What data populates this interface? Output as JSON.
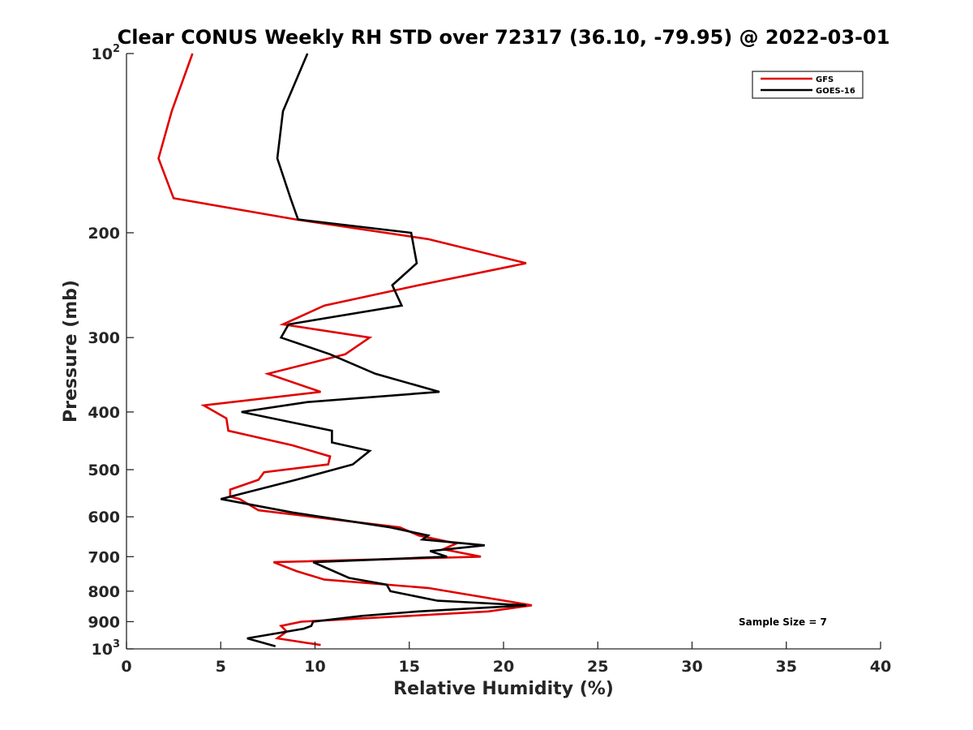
{
  "chart_data": {
    "type": "line",
    "title": "Clear CONUS Weekly RH STD over 72317 (36.10, -79.95) @ 2022-03-01",
    "xlabel": "Relative Humidity (%)",
    "ylabel": "Pressure (mb)",
    "xlim": [
      0,
      40
    ],
    "ylim": [
      100,
      1000
    ],
    "y_scale": "log",
    "y_reversed": true,
    "x_ticks": [
      0,
      5,
      10,
      15,
      20,
      25,
      30,
      35,
      40
    ],
    "y_ticks": [
      {
        "value": 100,
        "base": "10",
        "exp": "2"
      },
      {
        "value": 200,
        "label": "200"
      },
      {
        "value": 300,
        "label": "300"
      },
      {
        "value": 400,
        "label": "400"
      },
      {
        "value": 500,
        "label": "500"
      },
      {
        "value": 600,
        "label": "600"
      },
      {
        "value": 700,
        "label": "700"
      },
      {
        "value": 800,
        "label": "800"
      },
      {
        "value": 900,
        "label": "900"
      },
      {
        "value": 1000,
        "base": "10",
        "exp": "3"
      }
    ],
    "grid": false,
    "legend_position": "top-right",
    "series": [
      {
        "name": "GFS",
        "color": "#e00000",
        "points": [
          [
            3.5,
            100
          ],
          [
            2.4,
            125
          ],
          [
            1.7,
            150
          ],
          [
            2.5,
            175
          ],
          [
            9.0,
            190
          ],
          [
            16.0,
            205
          ],
          [
            21.2,
            225
          ],
          [
            15.5,
            245
          ],
          [
            10.5,
            265
          ],
          [
            8.3,
            285
          ],
          [
            12.9,
            300
          ],
          [
            11.6,
            320
          ],
          [
            7.5,
            345
          ],
          [
            10.3,
            370
          ],
          [
            4.1,
            390
          ],
          [
            5.3,
            410
          ],
          [
            5.4,
            430
          ],
          [
            8.8,
            455
          ],
          [
            10.8,
            475
          ],
          [
            10.7,
            490
          ],
          [
            7.3,
            505
          ],
          [
            7.0,
            520
          ],
          [
            5.5,
            540
          ],
          [
            5.5,
            555
          ],
          [
            6.0,
            560
          ],
          [
            7.0,
            585
          ],
          [
            14.5,
            625
          ],
          [
            15.5,
            645
          ],
          [
            17.5,
            665
          ],
          [
            16.8,
            680
          ],
          [
            18.8,
            700
          ],
          [
            7.8,
            715
          ],
          [
            9.0,
            740
          ],
          [
            10.5,
            765
          ],
          [
            16.0,
            790
          ],
          [
            21.5,
            845
          ],
          [
            19.2,
            865
          ],
          [
            15.0,
            880
          ],
          [
            9.3,
            900
          ],
          [
            8.2,
            915
          ],
          [
            8.5,
            935
          ],
          [
            8.0,
            960
          ],
          [
            10.3,
            985
          ]
        ]
      },
      {
        "name": "GOES-16",
        "color": "#000000",
        "points": [
          [
            9.6,
            100
          ],
          [
            8.3,
            125
          ],
          [
            8.0,
            150
          ],
          [
            8.7,
            175
          ],
          [
            9.1,
            190
          ],
          [
            15.1,
            200
          ],
          [
            15.4,
            225
          ],
          [
            14.1,
            245
          ],
          [
            14.6,
            265
          ],
          [
            8.6,
            285
          ],
          [
            8.2,
            300
          ],
          [
            10.8,
            320
          ],
          [
            13.2,
            345
          ],
          [
            16.6,
            370
          ],
          [
            9.6,
            385
          ],
          [
            6.1,
            400
          ],
          [
            10.9,
            430
          ],
          [
            10.9,
            450
          ],
          [
            12.9,
            465
          ],
          [
            12.0,
            490
          ],
          [
            9.0,
            520
          ],
          [
            5.0,
            560
          ],
          [
            8.8,
            590
          ],
          [
            14.0,
            625
          ],
          [
            16.0,
            645
          ],
          [
            15.7,
            655
          ],
          [
            19.0,
            670
          ],
          [
            16.1,
            685
          ],
          [
            17.0,
            700
          ],
          [
            9.9,
            715
          ],
          [
            11.8,
            760
          ],
          [
            13.8,
            780
          ],
          [
            14.0,
            800
          ],
          [
            16.5,
            830
          ],
          [
            21.2,
            845
          ],
          [
            15.5,
            865
          ],
          [
            12.5,
            880
          ],
          [
            9.9,
            900
          ],
          [
            9.8,
            915
          ],
          [
            9.4,
            925
          ],
          [
            6.4,
            960
          ],
          [
            7.9,
            990
          ]
        ]
      }
    ],
    "annotations": [
      {
        "text": "Sample Size = 7",
        "x": 34,
        "y": 915
      }
    ]
  }
}
